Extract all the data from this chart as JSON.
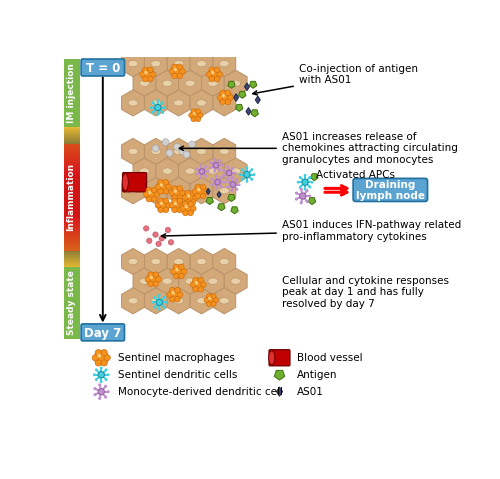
{
  "bg_color": "#ffffff",
  "t0_label": "T = 0",
  "t7_label": "Day 7",
  "t0_color": "#5ba3d0",
  "hex_fill": "#d4a97a",
  "hex_edge": "#b8926a",
  "oval_fill": "#e8d0a8",
  "annotation1": "Co-injection of antigen\nwith AS01",
  "annotation2": "AS01 increases release of\nchemokines attracting circulating\ngranulocytes and monocytes",
  "annotation3": "Activated APCs",
  "annotation4": "Draining\nlymph node",
  "annotation5": "AS01 induces IFN-pathway related\npro-inflammatory cytokines",
  "annotation6": "Cellular and cytokine responses\npeak at day 1 and has fully\nresolved by day 7",
  "macro_color": "#f5921e",
  "macro_outline": "#d07010",
  "dendritic_color": "#40d0e0",
  "mono_dendritic_color": "#c090d0",
  "antigen_color": "#70b030",
  "as01_color": "#404870",
  "blood_color": "#c00000",
  "neutrophil_color": "#d0d0d0",
  "cytokine_color": "#e87080"
}
